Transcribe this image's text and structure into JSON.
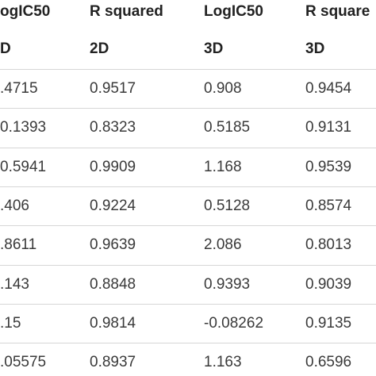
{
  "table": {
    "header_rows": [
      [
        "ogIC50",
        "R squared",
        "LogIC50",
        "R square"
      ],
      [
        "D",
        "2D",
        "3D",
        "3D"
      ]
    ],
    "rows": [
      [
        ".4715",
        "0.9517",
        "0.908",
        "0.9454"
      ],
      [
        "0.1393",
        "0.8323",
        "0.5185",
        "0.9131"
      ],
      [
        "0.5941",
        "0.9909",
        "1.168",
        "0.9539"
      ],
      [
        ".406",
        "0.9224",
        "0.5128",
        "0.8574"
      ],
      [
        ".8611",
        "0.9639",
        "2.086",
        "0.8013"
      ],
      [
        ".143",
        "0.8848",
        "0.9393",
        "0.9039"
      ],
      [
        ".15",
        "0.9814",
        "-0.08262",
        "0.9135"
      ],
      [
        ".05575",
        "0.8937",
        "1.163",
        "0.6596"
      ]
    ]
  }
}
